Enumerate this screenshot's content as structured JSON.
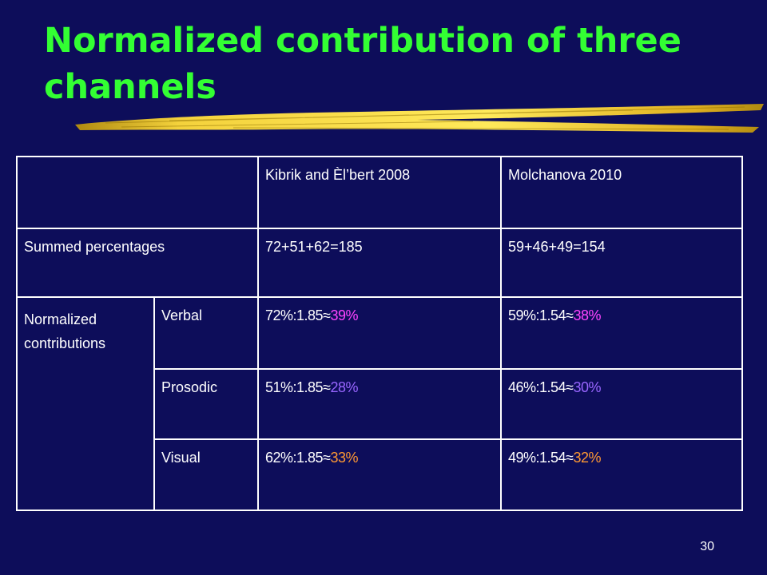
{
  "title": "Normalized contribution of three channels",
  "colors": {
    "background": "#0d0d5a",
    "title": "#33ff33",
    "verbal": "#ff44ff",
    "prosodic": "#9966ff",
    "visual": "#ff9933"
  },
  "table": {
    "col_headers": [
      "Kibrik and Èl’bert 2008",
      "Molchanova 2010"
    ],
    "summed_label": "Summed percentages",
    "summed_values": [
      "72+51+62=185",
      "59+46+49=154"
    ],
    "normalized_label_1": "Normalized",
    "normalized_label_2": "contributions",
    "rows": [
      {
        "channel": "Verbal",
        "c1_expr": "72%:1.85≈",
        "c1_result": "39%",
        "c2_expr": "59%:1.54≈",
        "c2_result": "38%"
      },
      {
        "channel": "Prosodic",
        "c1_expr": "51%:1.85≈",
        "c1_result": "28%",
        "c2_expr": "46%:1.54≈",
        "c2_result": "30%"
      },
      {
        "channel": "Visual",
        "c1_expr": "62%:1.85≈",
        "c1_result": "33%",
        "c2_expr": "49%:1.54≈",
        "c2_result": "32%"
      }
    ]
  },
  "page_number": "30"
}
